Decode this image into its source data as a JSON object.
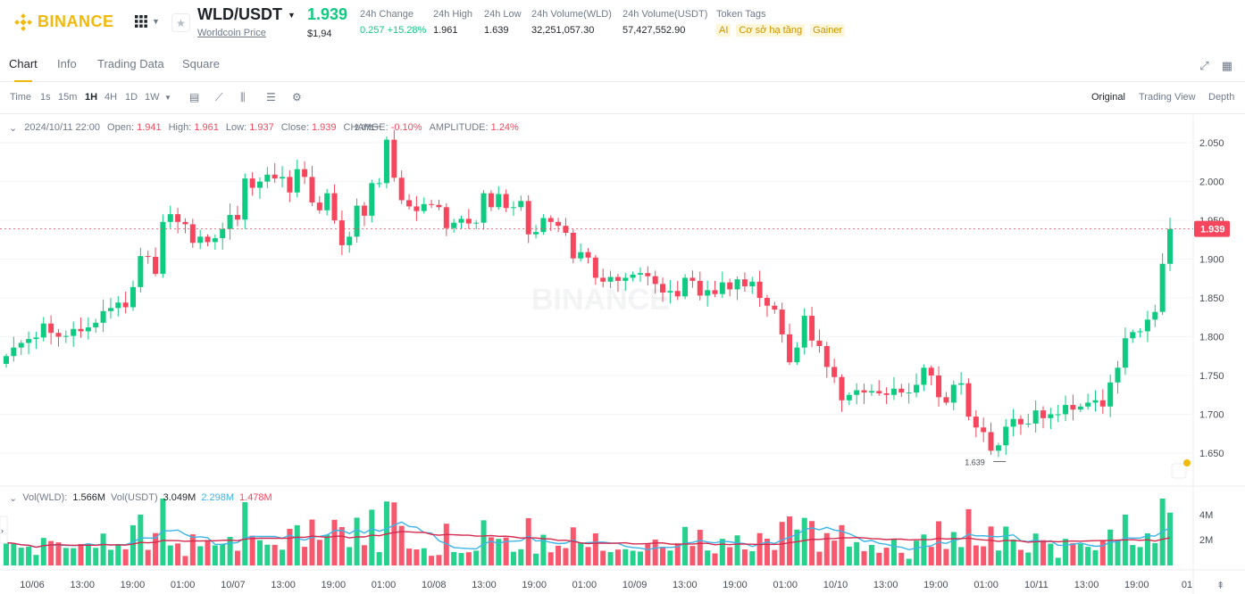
{
  "header": {
    "logo_text": "BINANCE",
    "symbol": "WLD/USDT",
    "symbol_subtitle": "Worldcoin Price",
    "last_price": "1.939",
    "fiat_price": "$1,94",
    "stats": [
      {
        "label": "24h Change",
        "value": "0.257 +15.28%"
      },
      {
        "label": "24h High",
        "value": "1.961"
      },
      {
        "label": "24h Low",
        "value": "1.639"
      },
      {
        "label": "24h Volume(WLD)",
        "value": "32,251,057.30"
      },
      {
        "label": "24h Volume(USDT)",
        "value": "57,427,552.90"
      }
    ],
    "token_tags_label": "Token Tags",
    "token_tags": [
      "AI",
      "Cơ sở hạ tầng",
      "Gainer"
    ]
  },
  "tabs": [
    "Chart",
    "Info",
    "Trading Data",
    "Square"
  ],
  "active_tab": "Chart",
  "toolbar": {
    "intervals": [
      "Time",
      "1s",
      "15m",
      "1H",
      "4H",
      "1D",
      "1W"
    ],
    "active_interval": "1H",
    "views": [
      "Original",
      "Trading View",
      "Depth"
    ],
    "active_view": "Original"
  },
  "ohlc": {
    "date": "2024/10/11 22:00",
    "open_label": "Open:",
    "open": "1.941",
    "high_label": "High:",
    "high": "1.961",
    "low_label": "Low:",
    "low": "1.937",
    "close_label": "Close:",
    "close": "1.939",
    "change_label": "CHANGE:",
    "change": "-0.10%",
    "amplitude_label": "AMPLITUDE:",
    "amplitude": "1.24%"
  },
  "volume_legend": {
    "label_wld": "Vol(WLD):",
    "value_wld": "1.566M",
    "label_usdt": "Vol(USDT)",
    "value_usdt": "3.049M",
    "ma1": "2.298M",
    "ma2": "1.478M"
  },
  "colors": {
    "up": "#0ecb81",
    "down": "#f6465d",
    "accent": "#f0b90b",
    "ma_blue": "#3cb4e6",
    "ma_red": "#d6294e"
  },
  "chart_data": {
    "type": "candlestick",
    "price_axis_ticks": [
      "2.050",
      "2.000",
      "1.950",
      "1.900",
      "1.850",
      "1.800",
      "1.750",
      "1.700",
      "1.650"
    ],
    "price_ylim": [
      1.612,
      2.072
    ],
    "time_axis_ticks": [
      "10/06",
      "13:00",
      "19:00",
      "01:00",
      "10/07",
      "13:00",
      "19:00",
      "01:00",
      "10/08",
      "13:00",
      "19:00",
      "01:00",
      "10/09",
      "13:00",
      "19:00",
      "01:00",
      "10/10",
      "13:00",
      "19:00",
      "01:00",
      "10/11",
      "13:00",
      "19:00",
      "01"
    ],
    "volume_axis_ticks": [
      "4M",
      "2M"
    ],
    "current_price_label": "1.939",
    "high_marker": "2.071",
    "low_marker": "1.639",
    "closes": [
      1.775,
      1.786,
      1.792,
      1.797,
      1.799,
      1.817,
      1.805,
      1.8,
      1.801,
      1.81,
      1.807,
      1.812,
      1.818,
      1.833,
      1.837,
      1.844,
      1.838,
      1.864,
      1.904,
      1.903,
      1.881,
      1.948,
      1.958,
      1.948,
      1.945,
      1.921,
      1.929,
      1.922,
      1.927,
      1.939,
      1.957,
      1.951,
      2.004,
      1.992,
      2.0,
      2.009,
      2.004,
      2.006,
      1.986,
      2.016,
      2.006,
      1.973,
      1.963,
      1.985,
      1.95,
      1.918,
      1.929,
      1.969,
      1.956,
      1.998,
      1.998,
      2.054,
      2.005,
      1.976,
      1.968,
      1.962,
      1.971,
      1.97,
      1.967,
      1.94,
      1.947,
      1.952,
      1.946,
      1.947,
      1.985,
      1.967,
      1.984,
      1.966,
      1.967,
      1.975,
      1.932,
      1.935,
      1.953,
      1.948,
      1.943,
      1.934,
      1.901,
      1.909,
      1.902,
      1.876,
      1.871,
      1.877,
      1.872,
      1.876,
      1.88,
      1.882,
      1.878,
      1.868,
      1.857,
      1.859,
      1.852,
      1.876,
      1.872,
      1.853,
      1.86,
      1.855,
      1.87,
      1.861,
      1.874,
      1.865,
      1.871,
      1.85,
      1.84,
      1.835,
      1.803,
      1.767,
      1.786,
      1.827,
      1.795,
      1.788,
      1.761,
      1.748,
      1.718,
      1.725,
      1.731,
      1.728,
      1.73,
      1.727,
      1.725,
      1.733,
      1.728,
      1.728,
      1.738,
      1.76,
      1.75,
      1.722,
      1.715,
      1.738,
      1.74,
      1.697,
      1.683,
      1.677,
      1.653,
      1.66,
      1.684,
      1.694,
      1.687,
      1.688,
      1.705,
      1.695,
      1.7,
      1.7,
      1.712,
      1.706,
      1.71,
      1.715,
      1.718,
      1.71,
      1.741,
      1.76,
      1.798,
      1.806,
      1.807,
      1.822,
      1.832,
      1.894,
      1.939
    ]
  }
}
